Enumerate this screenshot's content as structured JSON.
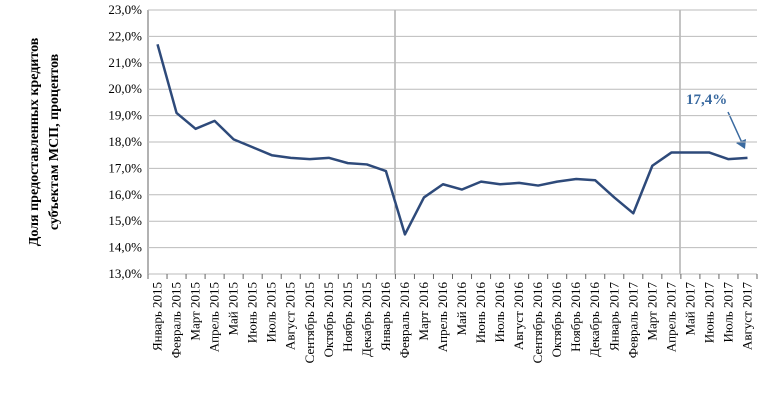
{
  "chart_data": {
    "type": "line",
    "ylabel": [
      "Доля предоставленных кредитов",
      "субъектам МСП, процентов"
    ],
    "annotation": "17,4%",
    "categories": [
      "Январь 2015",
      "Февраль 2015",
      "Март 2015",
      "Апрель 2015",
      "Май 2015",
      "Июнь 2015",
      "Июль 2015",
      "Август 2015",
      "Сентябрь 2015",
      "Октябрь 2015",
      "Ноябрь 2015",
      "Декабрь 2015",
      "Январь 2016",
      "Февраль 2016",
      "Март 2016",
      "Апрель 2016",
      "Май 2016",
      "Июнь 2016",
      "Июль 2016",
      "Август 2016",
      "Сентябрь 2016",
      "Октябрь 2016",
      "Ноябрь 2016",
      "Декабрь 2016",
      "Январь 2017",
      "Февраль 2017",
      "Март 2017",
      "Апрель 2017",
      "Май 2017",
      "Июнь 2017",
      "Июль 2017",
      "Август 2017"
    ],
    "values": [
      21.7,
      19.1,
      18.5,
      18.8,
      18.1,
      17.8,
      17.5,
      17.4,
      17.35,
      17.4,
      17.2,
      17.15,
      16.9,
      14.5,
      15.9,
      16.4,
      16.2,
      16.5,
      16.4,
      16.45,
      16.35,
      16.5,
      16.6,
      16.55,
      15.9,
      15.3,
      17.1,
      17.6,
      17.6,
      17.6,
      17.35,
      17.4
    ],
    "color": "#2e4a7a",
    "ylim": [
      13,
      23
    ],
    "yticks": [
      {
        "value": 13,
        "label": "13,0%"
      },
      {
        "value": 14,
        "label": "14,0%"
      },
      {
        "value": 15,
        "label": "15,0%"
      },
      {
        "value": 16,
        "label": "16,0%"
      },
      {
        "value": 17,
        "label": "17,0%"
      },
      {
        "value": 18,
        "label": "18,0%"
      },
      {
        "value": 19,
        "label": "19,0%"
      },
      {
        "value": 20,
        "label": "20,0%"
      },
      {
        "value": 21,
        "label": "21,0%"
      },
      {
        "value": 22,
        "label": "22,0%"
      },
      {
        "value": 23,
        "label": "23,0%"
      }
    ],
    "grid": true
  }
}
